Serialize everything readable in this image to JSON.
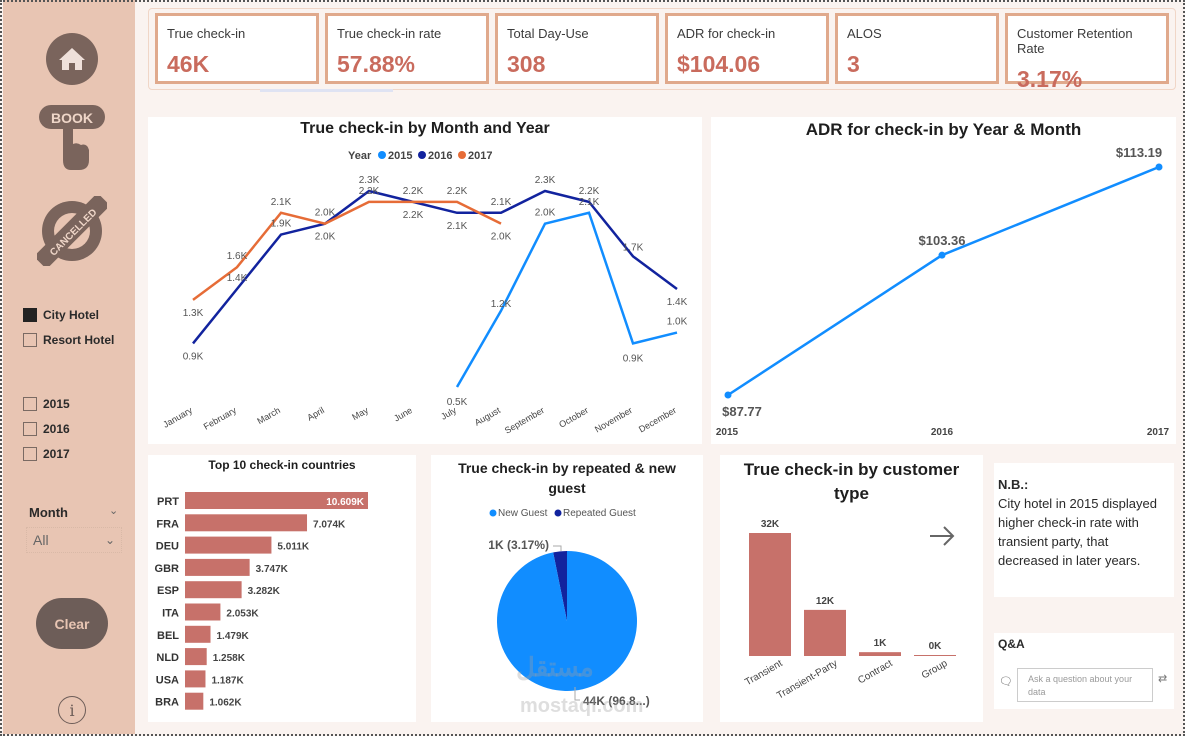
{
  "sidebar": {
    "nav": [
      {
        "name": "home-icon",
        "label": ""
      },
      {
        "name": "book-icon",
        "label": "BOOK"
      },
      {
        "name": "cancelled-icon",
        "label": "CANCELLED"
      }
    ],
    "hotel_filter": [
      {
        "label": "City Hotel",
        "checked": true
      },
      {
        "label": "Resort Hotel",
        "checked": false
      }
    ],
    "year_filter": [
      {
        "label": "2015",
        "checked": false
      },
      {
        "label": "2016",
        "checked": false
      },
      {
        "label": "2017",
        "checked": false
      }
    ],
    "month_label": "Month",
    "month_value": "All",
    "clear_label": "Clear",
    "info_label": "i"
  },
  "kpis": [
    {
      "label": "True check-in",
      "value": "46K"
    },
    {
      "label": "True check-in rate",
      "value": "57.88%"
    },
    {
      "label": "Total Day-Use",
      "value": "308"
    },
    {
      "label": "ADR for check-in",
      "value": "$104.06"
    },
    {
      "label": "ALOS",
      "value": "3"
    },
    {
      "label": "Customer Retention Rate",
      "value": "3.17%"
    }
  ],
  "colors": {
    "y2015": "#118dff",
    "y2016": "#12239e",
    "y2017": "#e66c37",
    "bar": "#c7716a",
    "kpi_value": "#c96b5d",
    "sidebar": "#e8c5b3"
  },
  "chart_data": [
    {
      "type": "line",
      "title": "True check-in by Month and Year",
      "legend_title": "Year",
      "legend_position": "top-center",
      "categories": [
        "January",
        "February",
        "March",
        "April",
        "May",
        "June",
        "July",
        "August",
        "September",
        "October",
        "November",
        "December"
      ],
      "series": [
        {
          "name": "2015",
          "values": [
            null,
            null,
            null,
            null,
            null,
            null,
            0.5,
            1.2,
            2.0,
            2.1,
            0.9,
            1.0
          ],
          "labels": [
            null,
            null,
            null,
            null,
            null,
            null,
            "0.5K",
            "1.2K",
            "2.0K",
            "2.1K",
            "0.9K",
            "1.0K"
          ]
        },
        {
          "name": "2016",
          "values": [
            0.9,
            1.4,
            1.9,
            2.0,
            2.3,
            2.2,
            2.1,
            2.1,
            2.3,
            2.2,
            1.7,
            1.4
          ],
          "labels": [
            "0.9K",
            "1.4K",
            "1.9K",
            "2.0K",
            "2.3K",
            "2.2K",
            "2.1K",
            "2.1K",
            "2.3K",
            "2.2K",
            "1.7K",
            "1.4K"
          ]
        },
        {
          "name": "2017",
          "values": [
            1.3,
            1.6,
            2.1,
            2.0,
            2.2,
            2.2,
            2.2,
            2.0,
            null,
            null,
            null,
            null
          ],
          "labels": [
            "1.3K",
            "1.6K",
            "2.1K",
            "2.0K",
            "2.2K",
            "2.2K",
            "2.2K",
            "2.0K",
            null,
            null,
            null,
            null
          ]
        }
      ],
      "unit": "K"
    },
    {
      "type": "line",
      "title": "ADR for check-in by Year & Month",
      "categories": [
        "2015",
        "2016",
        "2017"
      ],
      "values": [
        87.77,
        103.36,
        113.19
      ],
      "labels": [
        "$87.77",
        "$103.36",
        "$113.19"
      ]
    },
    {
      "type": "bar",
      "orientation": "horizontal",
      "title": "Top 10 check-in countries",
      "categories": [
        "PRT",
        "FRA",
        "DEU",
        "GBR",
        "ESP",
        "ITA",
        "BEL",
        "NLD",
        "USA",
        "BRA"
      ],
      "values": [
        10.609,
        7.074,
        5.011,
        3.747,
        3.282,
        2.053,
        1.479,
        1.258,
        1.187,
        1.062
      ],
      "labels": [
        "10.609K",
        "7.074K",
        "5.011K",
        "3.747K",
        "3.282K",
        "2.053K",
        "1.479K",
        "1.258K",
        "1.187K",
        "1.062K"
      ]
    },
    {
      "type": "pie",
      "title": "True check-in by repeated & new guest",
      "legend_position": "top-center",
      "categories": [
        "New Guest",
        "Repeated Guest"
      ],
      "values": [
        96.83,
        3.17
      ],
      "labels": [
        "44K (96.8...)",
        "1K (3.17%)"
      ]
    },
    {
      "type": "bar",
      "title": "True check-in by customer type",
      "categories": [
        "Transient",
        "Transient-Party",
        "Contract",
        "Group"
      ],
      "values": [
        32,
        12,
        1,
        0.2
      ],
      "labels": [
        "32K",
        "12K",
        "1K",
        "0K"
      ]
    }
  ],
  "notes": {
    "title": "N.B.:",
    "body": "City hotel in 2015 displayed higher check-in rate with transient party, that decreased in later years."
  },
  "qa": {
    "title": "Q&A",
    "placeholder": "Ask a question about your data"
  },
  "watermark": {
    "ar": "مستقل",
    "en": "mostaql.com"
  }
}
